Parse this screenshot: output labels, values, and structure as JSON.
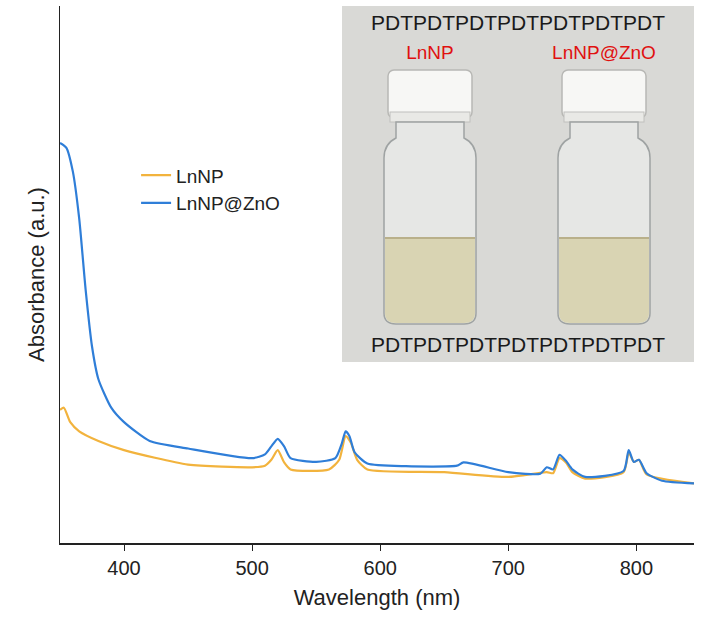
{
  "chart_data": {
    "type": "line",
    "x_label": "Wavelength (nm)",
    "y_label": "Absorbance (a.u.)",
    "xlim": [
      350,
      845
    ],
    "xticks": [
      400,
      500,
      600,
      700,
      800
    ],
    "ylim": [
      0,
      1
    ],
    "yticks": [],
    "tick_labels": "x",
    "grid": false,
    "legend": "upper left",
    "series": [
      {
        "name": "LnNP",
        "color": "#f2b33d",
        "x": [
          350,
          353,
          358,
          365,
          380,
          400,
          450,
          500,
          510,
          515,
          520,
          525,
          530,
          560,
          568,
          573,
          577,
          582,
          590,
          650,
          700,
          730,
          735,
          740,
          745,
          750,
          760,
          790,
          794,
          798,
          802,
          808,
          845
        ],
        "values": [
          0.248,
          0.252,
          0.225,
          0.208,
          0.19,
          0.173,
          0.146,
          0.141,
          0.144,
          0.155,
          0.173,
          0.15,
          0.137,
          0.137,
          0.155,
          0.199,
          0.187,
          0.155,
          0.137,
          0.132,
          0.123,
          0.132,
          0.13,
          0.158,
          0.15,
          0.132,
          0.12,
          0.132,
          0.169,
          0.151,
          0.155,
          0.128,
          0.111
        ]
      },
      {
        "name": "LnNP@ZnO",
        "color": "#2f7ed8",
        "x": [
          350,
          355,
          360,
          365,
          370,
          375,
          380,
          390,
          400,
          420,
          450,
          500,
          510,
          515,
          520,
          525,
          530,
          550,
          565,
          570,
          573,
          576,
          580,
          590,
          620,
          660,
          665,
          700,
          725,
          730,
          735,
          740,
          745,
          750,
          760,
          790,
          794,
          798,
          802,
          808,
          820,
          845
        ],
        "values": [
          0.745,
          0.736,
          0.692,
          0.604,
          0.472,
          0.366,
          0.305,
          0.252,
          0.225,
          0.19,
          0.176,
          0.158,
          0.165,
          0.18,
          0.194,
          0.18,
          0.158,
          0.151,
          0.158,
          0.185,
          0.208,
          0.199,
          0.169,
          0.148,
          0.143,
          0.144,
          0.15,
          0.132,
          0.129,
          0.141,
          0.137,
          0.164,
          0.153,
          0.137,
          0.123,
          0.134,
          0.173,
          0.151,
          0.155,
          0.13,
          0.116,
          0.111
        ]
      }
    ]
  },
  "inset": {
    "labels": [
      "LnNP",
      "LnNP@ZnO"
    ],
    "background_text": "PDTPDTPDTPDTPDTPDTPDT"
  }
}
